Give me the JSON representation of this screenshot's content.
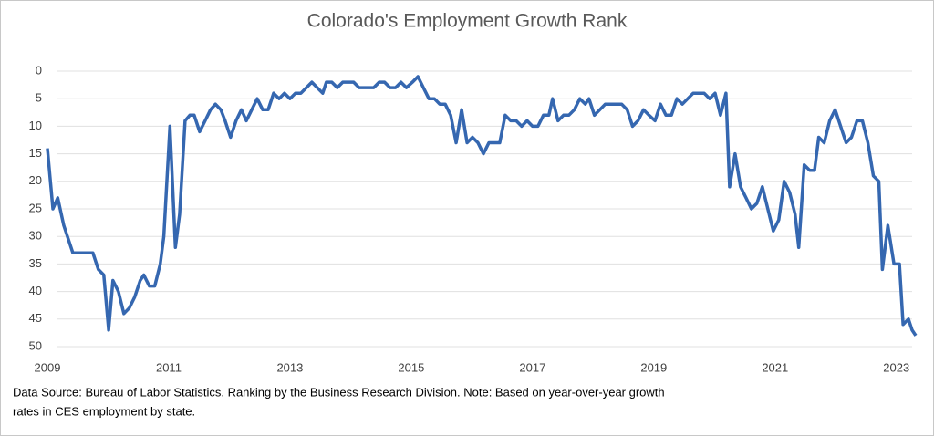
{
  "chart_data": {
    "type": "line",
    "title": "Colorado's Employment  Growth Rank",
    "note": "Data Source: Bureau of Labor Statistics. Ranking by the Business Research Division. Note: Based on year-over-year growth",
    "note_line2": "rates in CES employment by state.",
    "y_inverted": true,
    "grid": true,
    "xlim": [
      2009,
      2023.38
    ],
    "xticks": [
      2009,
      2011,
      2013,
      2015,
      2017,
      2019,
      2021,
      2023
    ],
    "ylim": [
      0,
      50
    ],
    "yticks": [
      0,
      5,
      10,
      15,
      20,
      25,
      30,
      35,
      40,
      45,
      50
    ],
    "x": [
      2009.0,
      2009.09,
      2009.17,
      2009.27,
      2009.42,
      2009.57,
      2009.75,
      2009.84,
      2009.93,
      2010.01,
      2010.08,
      2010.17,
      2010.26,
      2010.35,
      2010.44,
      2010.53,
      2010.59,
      2010.68,
      2010.77,
      2010.86,
      2010.92,
      2011.02,
      2011.11,
      2011.18,
      2011.27,
      2011.35,
      2011.42,
      2011.51,
      2011.6,
      2011.69,
      2011.77,
      2011.86,
      2011.93,
      2012.02,
      2012.11,
      2012.2,
      2012.28,
      2012.37,
      2012.46,
      2012.55,
      2012.64,
      2012.73,
      2012.82,
      2012.91,
      2013.0,
      2013.09,
      2013.18,
      2013.27,
      2013.36,
      2013.45,
      2013.54,
      2013.6,
      2013.69,
      2013.78,
      2013.87,
      2013.96,
      2014.05,
      2014.14,
      2014.29,
      2014.38,
      2014.47,
      2014.56,
      2014.65,
      2014.74,
      2014.83,
      2014.92,
      2015.02,
      2015.11,
      2015.2,
      2015.29,
      2015.38,
      2015.47,
      2015.56,
      2015.65,
      2015.74,
      2015.83,
      2015.92,
      2016.01,
      2016.1,
      2016.19,
      2016.28,
      2016.37,
      2016.46,
      2016.55,
      2016.64,
      2016.73,
      2016.82,
      2016.91,
      2017.0,
      2017.09,
      2017.18,
      2017.27,
      2017.33,
      2017.42,
      2017.51,
      2017.6,
      2017.69,
      2017.78,
      2017.87,
      2017.93,
      2018.02,
      2018.11,
      2018.2,
      2018.29,
      2018.38,
      2018.47,
      2018.56,
      2018.65,
      2018.74,
      2018.83,
      2018.92,
      2019.02,
      2019.11,
      2019.2,
      2019.29,
      2019.38,
      2019.47,
      2019.56,
      2019.65,
      2019.74,
      2019.83,
      2019.92,
      2020.01,
      2020.1,
      2020.19,
      2020.25,
      2020.34,
      2020.43,
      2020.52,
      2020.61,
      2020.7,
      2020.79,
      2020.88,
      2020.97,
      2021.06,
      2021.15,
      2021.24,
      2021.33,
      2021.39,
      2021.48,
      2021.57,
      2021.65,
      2021.72,
      2021.81,
      2021.9,
      2021.99,
      2022.08,
      2022.17,
      2022.26,
      2022.35,
      2022.44,
      2022.53,
      2022.62,
      2022.71,
      2022.77,
      2022.86,
      2022.96,
      2023.05,
      2023.11,
      2023.2,
      2023.26,
      2023.32
    ],
    "series": [
      {
        "name": "Colorado",
        "color": "#3567b0",
        "values": [
          14,
          25,
          23,
          28,
          33,
          33,
          33,
          36,
          37,
          47,
          38,
          40,
          44,
          43,
          41,
          38,
          37,
          39,
          39,
          35,
          30,
          10,
          32,
          26,
          9,
          8,
          8,
          11,
          9,
          7,
          6,
          7,
          9,
          12,
          9,
          7,
          9,
          7,
          5,
          7,
          7,
          4,
          5,
          4,
          5,
          4,
          4,
          3,
          2,
          3,
          4,
          2,
          2,
          3,
          2,
          2,
          2,
          3,
          3,
          3,
          2,
          2,
          3,
          3,
          2,
          3,
          2,
          1,
          3,
          5,
          5,
          6,
          6,
          8,
          13,
          7,
          13,
          12,
          13,
          15,
          13,
          13,
          13,
          8,
          9,
          9,
          10,
          9,
          10,
          10,
          8,
          8,
          5,
          9,
          8,
          8,
          7,
          5,
          6,
          5,
          8,
          7,
          6,
          6,
          6,
          6,
          7,
          10,
          9,
          7,
          8,
          9,
          6,
          8,
          8,
          5,
          6,
          5,
          4,
          4,
          4,
          5,
          4,
          8,
          4,
          21,
          15,
          21,
          23,
          25,
          24,
          21,
          25,
          29,
          27,
          20,
          22,
          26,
          32,
          17,
          18,
          18,
          12,
          13,
          9,
          7,
          10,
          13,
          12,
          9,
          9,
          13,
          19,
          20,
          36,
          28,
          35,
          35,
          46,
          45,
          47,
          48
        ]
      }
    ]
  }
}
